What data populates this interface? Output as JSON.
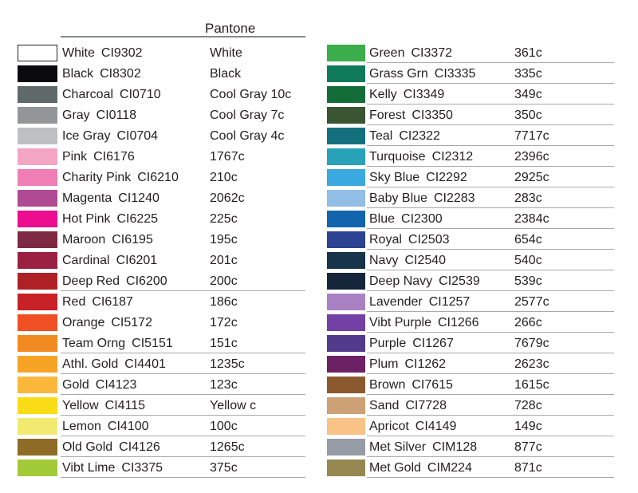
{
  "header": {
    "pantone_label": "Pantone"
  },
  "colors": {
    "text": "#231F20",
    "header_rule": "#85878A",
    "row_rule": "#A7A9AC",
    "background": "#FFFFFF"
  },
  "left_column": {
    "rows": [
      {
        "name": "White",
        "code": "CI9302",
        "pantone": "White",
        "hex": "#FFFFFF",
        "border": true,
        "underline": false
      },
      {
        "name": "Black",
        "code": "CI8302",
        "pantone": "Black",
        "hex": "#0B0B0D",
        "border": false,
        "underline": false
      },
      {
        "name": "Charcoal",
        "code": "CI0710",
        "pantone": "Cool Gray 10c",
        "hex": "#5F6967",
        "border": false,
        "underline": false
      },
      {
        "name": "Gray",
        "code": "CI0118",
        "pantone": "Cool Gray 7c",
        "hex": "#939698",
        "border": false,
        "underline": false
      },
      {
        "name": "Ice Gray",
        "code": "CI0704",
        "pantone": "Cool Gray 4c",
        "hex": "#BDBFC1",
        "border": false,
        "underline": false
      },
      {
        "name": "Pink",
        "code": "CI6176",
        "pantone": "1767c",
        "hex": "#F3A5C2",
        "border": false,
        "underline": false
      },
      {
        "name": "Charity Pink",
        "code": "CI6210",
        "pantone": "210c",
        "hex": "#EF7EB5",
        "border": false,
        "underline": false
      },
      {
        "name": "Magenta",
        "code": "CI1240",
        "pantone": "2062c",
        "hex": "#B04A93",
        "border": false,
        "underline": false
      },
      {
        "name": "Hot Pink",
        "code": "CI6225",
        "pantone": "225c",
        "hex": "#EC0E8E",
        "border": false,
        "underline": false
      },
      {
        "name": "Maroon",
        "code": "CI6195",
        "pantone": "195c",
        "hex": "#7E2A43",
        "border": false,
        "underline": false
      },
      {
        "name": "Cardinal",
        "code": "CI6201",
        "pantone": "201c",
        "hex": "#9A2142",
        "border": false,
        "underline": false
      },
      {
        "name": "Deep Red",
        "code": "CI6200",
        "pantone": "200c",
        "hex": "#B02027",
        "border": false,
        "underline": true
      },
      {
        "name": "Red",
        "code": "CI6187",
        "pantone": "186c",
        "hex": "#C82128",
        "border": false,
        "underline": false
      },
      {
        "name": "Orange",
        "code": "CI5172",
        "pantone": "172c",
        "hex": "#F04E23",
        "border": false,
        "underline": false
      },
      {
        "name": "Team Orng",
        "code": "CI5151",
        "pantone": "151c",
        "hex": "#F18A21",
        "border": false,
        "underline": true
      },
      {
        "name": "Athl. Gold",
        "code": "CI4401",
        "pantone": "1235c",
        "hex": "#F6A426",
        "border": false,
        "underline": true
      },
      {
        "name": "Gold",
        "code": "CI4123",
        "pantone": "123c",
        "hex": "#FAB73C",
        "border": false,
        "underline": true
      },
      {
        "name": "Yellow",
        "code": "CI4115",
        "pantone": "Yellow c",
        "hex": "#F9DC16",
        "border": false,
        "underline": true
      },
      {
        "name": "Lemon",
        "code": "CI4100",
        "pantone": "100c",
        "hex": "#F2EA70",
        "border": false,
        "underline": true
      },
      {
        "name": "Old Gold",
        "code": "CI4126",
        "pantone": "1265c",
        "hex": "#8E6B26",
        "border": false,
        "underline": true
      },
      {
        "name": "Vibt Lime",
        "code": "CI3375",
        "pantone": "375c",
        "hex": "#A3CB39",
        "border": false,
        "underline": true
      }
    ]
  },
  "right_column": {
    "rows": [
      {
        "name": "Green",
        "code": "CI3372",
        "pantone": "361c",
        "hex": "#3BAD4A",
        "border": false,
        "underline": true
      },
      {
        "name": "Grass Grn",
        "code": "CI3335",
        "pantone": "335c",
        "hex": "#107B58",
        "border": false,
        "underline": true
      },
      {
        "name": "Kelly",
        "code": "CI3349",
        "pantone": "349c",
        "hex": "#146C38",
        "border": false,
        "underline": true
      },
      {
        "name": "Forest",
        "code": "CI3350",
        "pantone": "350c",
        "hex": "#3A5531",
        "border": false,
        "underline": true
      },
      {
        "name": "Teal",
        "code": "CI2322",
        "pantone": "7717c",
        "hex": "#13707C",
        "border": false,
        "underline": true
      },
      {
        "name": "Turquoise",
        "code": "CI2312",
        "pantone": "2396c",
        "hex": "#27A2B8",
        "border": false,
        "underline": true
      },
      {
        "name": "Sky Blue",
        "code": "CI2292",
        "pantone": "2925c",
        "hex": "#39A9E0",
        "border": false,
        "underline": true
      },
      {
        "name": "Baby Blue",
        "code": "CI2283",
        "pantone": "283c",
        "hex": "#92BDE5",
        "border": false,
        "underline": true
      },
      {
        "name": "Blue",
        "code": "CI2300",
        "pantone": "2384c",
        "hex": "#1265AD",
        "border": false,
        "underline": true
      },
      {
        "name": "Royal",
        "code": "CI2503",
        "pantone": "654c",
        "hex": "#2B4390",
        "border": false,
        "underline": true
      },
      {
        "name": "Navy",
        "code": "CI2540",
        "pantone": "540c",
        "hex": "#16344B",
        "border": false,
        "underline": true
      },
      {
        "name": "Deep Navy",
        "code": "CI2539",
        "pantone": "539c",
        "hex": "#15263A",
        "border": false,
        "underline": true
      },
      {
        "name": "Lavender",
        "code": "CI1257",
        "pantone": "2577c",
        "hex": "#A981C4",
        "border": false,
        "underline": true
      },
      {
        "name": "Vibt Purple",
        "code": "CI1266",
        "pantone": "266c",
        "hex": "#7540A6",
        "border": false,
        "underline": true
      },
      {
        "name": "Purple",
        "code": "CI1267",
        "pantone": "7679c",
        "hex": "#523A8D",
        "border": false,
        "underline": true
      },
      {
        "name": "Plum",
        "code": "CI1262",
        "pantone": "2623c",
        "hex": "#6B2164",
        "border": false,
        "underline": true
      },
      {
        "name": "Brown",
        "code": "CI7615",
        "pantone": "1615c",
        "hex": "#8A5A2E",
        "border": false,
        "underline": true
      },
      {
        "name": "Sand",
        "code": "CI7728",
        "pantone": "728c",
        "hex": "#CDA175",
        "border": false,
        "underline": true
      },
      {
        "name": "Apricot",
        "code": "CI4149",
        "pantone": "149c",
        "hex": "#F9C287",
        "border": false,
        "underline": true
      },
      {
        "name": "Met Silver",
        "code": "CIM128",
        "pantone": "877c",
        "hex": "#969CA5",
        "border": false,
        "underline": true
      },
      {
        "name": "Met Gold",
        "code": "CIM224",
        "pantone": "871c",
        "hex": "#968851",
        "border": false,
        "underline": true
      }
    ]
  }
}
